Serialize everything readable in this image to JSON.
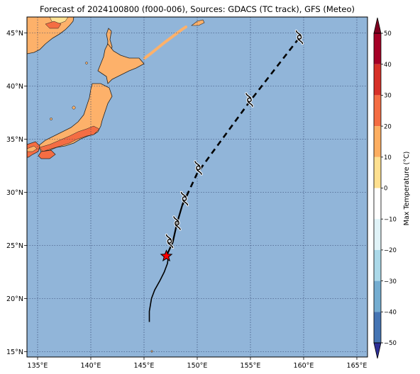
{
  "title": "Forecast of 2024100800 (f000-006), Sources: GDACS (TC track), GFS (Meteo)",
  "map": {
    "lon_range": [
      134,
      166
    ],
    "lat_range": [
      14.5,
      46.5
    ],
    "lon_ticks": [
      {
        "value": 135,
        "label": "135°E"
      },
      {
        "value": 140,
        "label": "140°E"
      },
      {
        "value": 145,
        "label": "145°E"
      },
      {
        "value": 150,
        "label": "150°E"
      },
      {
        "value": 155,
        "label": "155°E"
      },
      {
        "value": 160,
        "label": "160°E"
      },
      {
        "value": 165,
        "label": "165°E"
      }
    ],
    "lat_ticks": [
      {
        "value": 15,
        "label": "15°N"
      },
      {
        "value": 20,
        "label": "20°N"
      },
      {
        "value": 25,
        "label": "25°N"
      },
      {
        "value": 30,
        "label": "30°N"
      },
      {
        "value": 35,
        "label": "35°N"
      },
      {
        "value": 40,
        "label": "40°N"
      },
      {
        "value": 45,
        "label": "45°N"
      }
    ],
    "ocean_color": "#91b5d9",
    "gridlines": "dotted"
  },
  "track": {
    "observed": [
      [
        145.5,
        17.8
      ],
      [
        145.5,
        18.8
      ],
      [
        145.7,
        20.0
      ],
      [
        146.0,
        20.8
      ],
      [
        146.5,
        21.7
      ],
      [
        146.9,
        22.5
      ],
      [
        147.2,
        23.3
      ],
      [
        147.3,
        24.0
      ]
    ],
    "current_position": [
      147.1,
      24.0
    ],
    "forecast_solid": [
      [
        147.1,
        24.0
      ],
      [
        147.7,
        25.3
      ],
      [
        148.1,
        27.1
      ],
      [
        148.6,
        28.8
      ]
    ],
    "forecast_dashed": [
      [
        148.6,
        28.8
      ],
      [
        150.0,
        31.8
      ],
      [
        154.9,
        38.5
      ],
      [
        159.4,
        44.3
      ]
    ],
    "storm_symbol_positions": [
      [
        147.4,
        25.4
      ],
      [
        148.1,
        27.1
      ],
      [
        148.8,
        29.4
      ],
      [
        150.1,
        32.3
      ],
      [
        154.9,
        38.7
      ],
      [
        159.6,
        44.6
      ]
    ],
    "storm_color": "#000000",
    "star_color": "#ff0000"
  },
  "colorbar": {
    "label": "Max Temperature (°C)",
    "min": -50,
    "max": 50,
    "ticks": [
      {
        "value": 50,
        "label": "50"
      },
      {
        "value": 40,
        "label": "40"
      },
      {
        "value": 30,
        "label": "30"
      },
      {
        "value": 20,
        "label": "20"
      },
      {
        "value": 10,
        "label": "10"
      },
      {
        "value": 0,
        "label": "0"
      },
      {
        "value": -10,
        "label": "−10"
      },
      {
        "value": -20,
        "label": "−20"
      },
      {
        "value": -30,
        "label": "−30"
      },
      {
        "value": -40,
        "label": "−40"
      },
      {
        "value": -50,
        "label": "−50"
      }
    ],
    "bands": [
      {
        "from": 40,
        "to": 50,
        "color": "#a50026"
      },
      {
        "from": 30,
        "to": 40,
        "color": "#d73027"
      },
      {
        "from": 20,
        "to": 30,
        "color": "#f46d43"
      },
      {
        "from": 10,
        "to": 20,
        "color": "#fdae61"
      },
      {
        "from": 0,
        "to": 10,
        "color": "#fee090"
      },
      {
        "from": -10,
        "to": 0,
        "color": "#ffffff"
      },
      {
        "from": -20,
        "to": -10,
        "color": "#e0f3f8"
      },
      {
        "from": -30,
        "to": -20,
        "color": "#abd9e9"
      },
      {
        "from": -40,
        "to": -30,
        "color": "#74add1"
      },
      {
        "from": -50,
        "to": -40,
        "color": "#4575b4"
      }
    ],
    "extend_max_color": "#7f0020",
    "extend_min_color": "#2d2f96"
  }
}
